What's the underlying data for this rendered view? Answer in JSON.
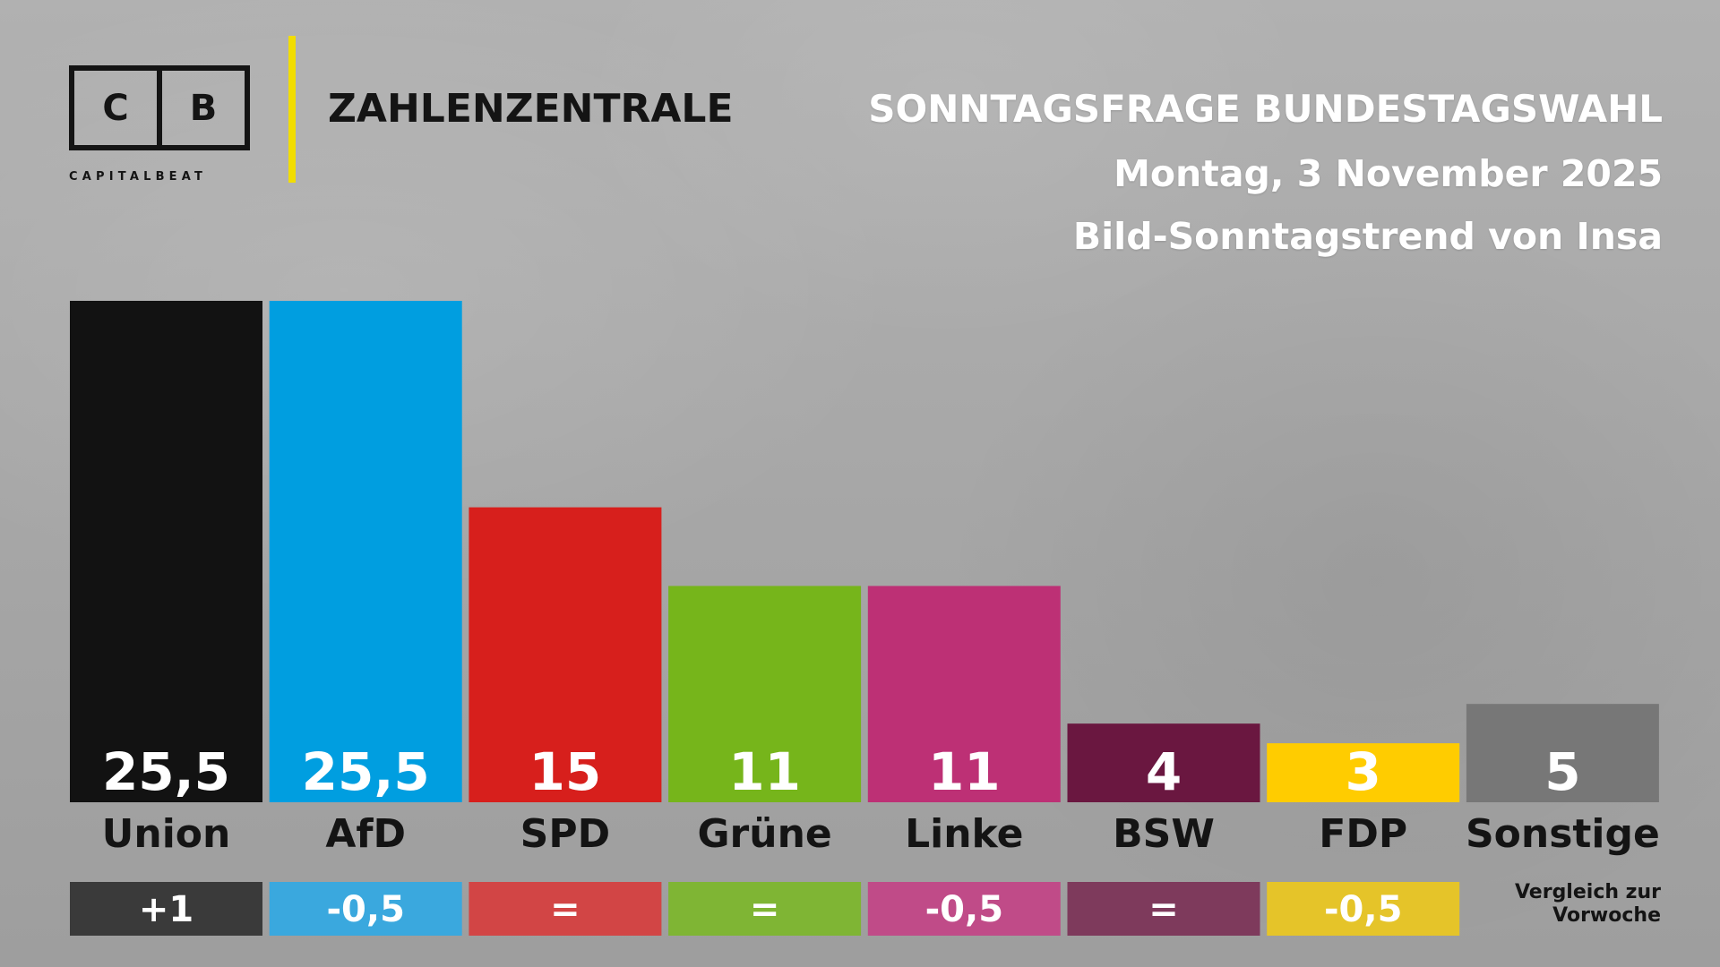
{
  "brand": {
    "logo_letters": [
      "C",
      "B"
    ],
    "logo_wordmark": "CAPITALBEAT",
    "section": "ZAHLENZENTRALE",
    "accent_color": "#f2dd00"
  },
  "header": {
    "title": "SONNTAGSFRAGE BUNDESTAGSWAHL",
    "date": "Montag, 3 November 2025",
    "source": "Bild-Sonntagstrend von Insa"
  },
  "compare_note": "Vergleich zur Vorwoche",
  "chart_data": {
    "type": "bar",
    "categories": [
      "Union",
      "AfD",
      "SPD",
      "Grüne",
      "Linke",
      "BSW",
      "FDP",
      "Sonstige"
    ],
    "values": [
      25.5,
      25.5,
      15,
      11,
      11,
      4,
      3,
      5
    ],
    "value_labels": [
      "25,5",
      "25,5",
      "15",
      "11",
      "11",
      "4",
      "3",
      "5"
    ],
    "changes": [
      "+1",
      "-0,5",
      "=",
      "=",
      "-0,5",
      "=",
      "-0,5",
      null
    ],
    "colors": [
      "#121212",
      "#009ee0",
      "#d71f1c",
      "#76b51b",
      "#bd3075",
      "#6a1740",
      "#ffcc00",
      "#777777"
    ],
    "change_colors": [
      "#3a3a3a",
      "#3aa8de",
      "#d24545",
      "#7fb534",
      "#c04b88",
      "#7e3a5c",
      "#e5c429",
      null
    ],
    "grid": false,
    "legend": "none"
  }
}
